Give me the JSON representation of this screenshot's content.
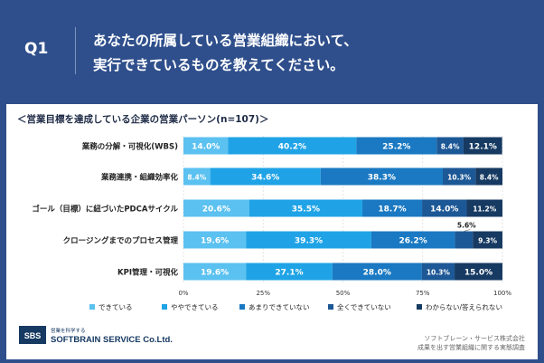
{
  "question": {
    "label": "Q1",
    "line1": "あなたの所属している営業組織において、",
    "line2": "実行できているものを教えてください。"
  },
  "subtitle": "＜営業目標を達成している企業の営業パーソン(n=107)＞",
  "chart_data": {
    "type": "bar",
    "orientation": "horizontal",
    "stacked": true,
    "categories": [
      "業務の分解・可視化(WBS)",
      "業務連携・組織効率化",
      "ゴール（目標）に紐づいたPDCAサイクル",
      "クロージングまでのプロセス管理",
      "KPI管理・可視化"
    ],
    "series": [
      {
        "name": "できている",
        "color": "#5bc1f0",
        "values": [
          14.0,
          8.4,
          20.6,
          19.6,
          19.6
        ]
      },
      {
        "name": "ややできている",
        "color": "#1fa3e6",
        "values": [
          40.2,
          34.6,
          35.5,
          39.3,
          27.1
        ]
      },
      {
        "name": "あまりできていない",
        "color": "#1a79c2",
        "values": [
          25.2,
          38.3,
          18.7,
          26.2,
          28.0
        ]
      },
      {
        "name": "全くできていない",
        "color": "#1d5896",
        "values": [
          8.4,
          10.3,
          14.0,
          5.6,
          10.3
        ]
      },
      {
        "name": "わからない/答えられない",
        "color": "#163a62",
        "values": [
          12.1,
          8.4,
          11.2,
          9.3,
          15.0
        ]
      }
    ],
    "value_labels": [
      [
        "14.0%",
        "40.2%",
        "25.2%",
        "8.4%",
        "12.1%"
      ],
      [
        "8.4%",
        "34.6%",
        "38.3%",
        "10.3%",
        "8.4%"
      ],
      [
        "20.6%",
        "35.5%",
        "18.7%",
        "14.0%",
        "11.2%"
      ],
      [
        "19.6%",
        "39.3%",
        "26.2%",
        "5.6%",
        "9.3%"
      ],
      [
        "19.6%",
        "27.1%",
        "28.0%",
        "10.3%",
        "15.0%"
      ]
    ],
    "xlim": [
      0,
      100
    ],
    "xticks": [
      "0%",
      "25%",
      "50%",
      "75%",
      "100%"
    ],
    "grid": true,
    "legend_position": "bottom"
  },
  "footer": {
    "logo_text": "SBS",
    "logo_tagline": "営業を科学する",
    "company": "SOFTBRAIN SERVICE Co.Ltd.",
    "credit_line1": "ソフトブレーン・サービス株式会社",
    "credit_line2": "成果を出す営業組織に関する実態調査"
  }
}
